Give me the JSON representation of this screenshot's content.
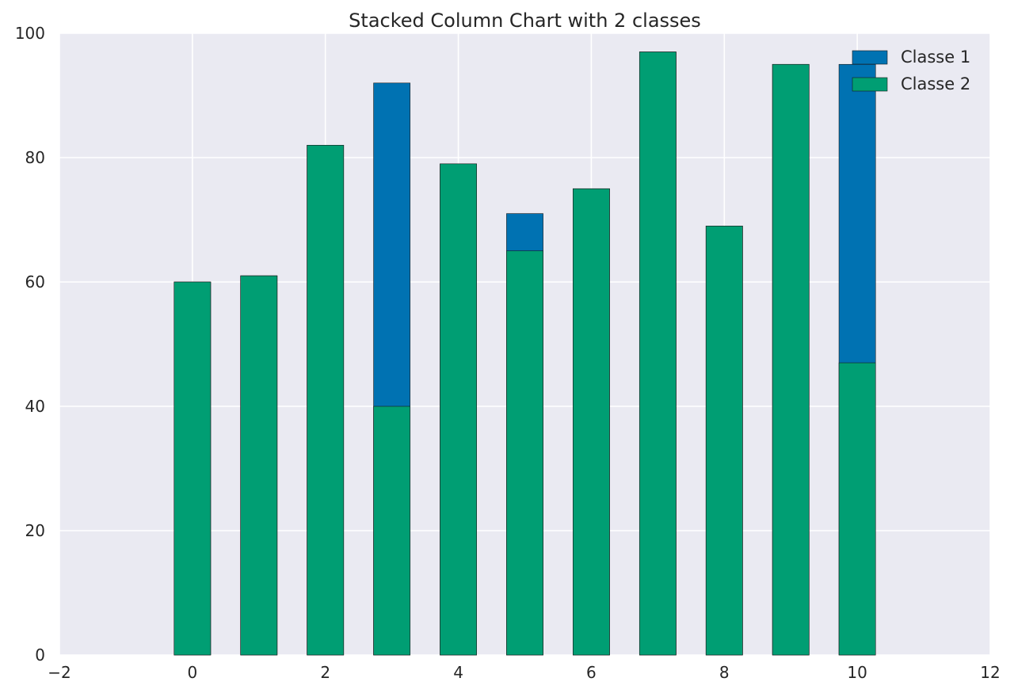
{
  "chart_data": {
    "type": "bar",
    "stacked": true,
    "title": "Stacked Column Chart with 2 classes",
    "xlabel": "",
    "ylabel": "",
    "x": [
      0,
      1,
      2,
      3,
      4,
      5,
      6,
      7,
      8,
      9,
      10
    ],
    "series": [
      {
        "name": "Classe 1",
        "color": "#0072B2",
        "total_height": [
          60,
          61,
          82,
          92,
          79,
          71,
          75,
          97,
          69,
          95,
          95
        ]
      },
      {
        "name": "Classe 2",
        "color": "#009E73",
        "values": [
          60,
          61,
          82,
          40,
          79,
          65,
          75,
          97,
          69,
          95,
          47
        ]
      }
    ],
    "xlim": [
      -2,
      12
    ],
    "ylim": [
      0,
      100
    ],
    "xticks": [
      "−2",
      "0",
      "2",
      "4",
      "6",
      "8",
      "10",
      "12"
    ],
    "yticks": [
      "0",
      "20",
      "40",
      "60",
      "80",
      "100"
    ],
    "grid": true,
    "legend_position": "top-right",
    "background": "#EAEAF2"
  }
}
